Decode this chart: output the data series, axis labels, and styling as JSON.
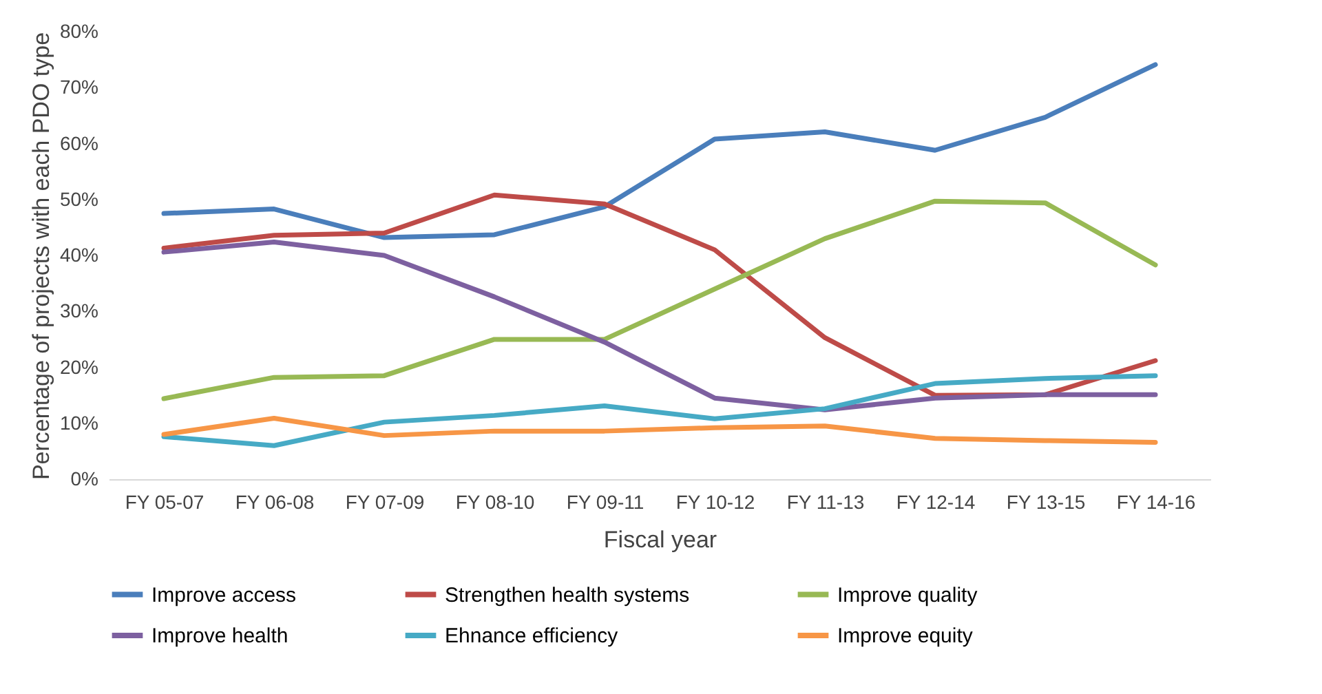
{
  "chart_data": {
    "type": "line",
    "xlabel": "Fiscal year",
    "ylabel": "Percentage of projects with each PDO type",
    "categories": [
      "FY 05-07",
      "FY 06-08",
      "FY 07-09",
      "FY 08-10",
      "FY 09-11",
      "FY 10-12",
      "FY 11-13",
      "FY 12-14",
      "FY 13-15",
      "FY 14-16"
    ],
    "ylim": [
      0,
      80
    ],
    "yticks": [
      {
        "value": 0,
        "label": "0%"
      },
      {
        "value": 10,
        "label": "10%"
      },
      {
        "value": 20,
        "label": "20%"
      },
      {
        "value": 30,
        "label": "30%"
      },
      {
        "value": 40,
        "label": "40%"
      },
      {
        "value": 50,
        "label": "50%"
      },
      {
        "value": 60,
        "label": "60%"
      },
      {
        "value": 70,
        "label": "70%"
      },
      {
        "value": 80,
        "label": "80%"
      }
    ],
    "grid": false,
    "legend": "bottom",
    "marker": "none",
    "line_style": "solid",
    "series": [
      {
        "name": "Improve access",
        "color": "#4a7ebb",
        "values": [
          47.5,
          48.3,
          43.2,
          43.7,
          48.7,
          60.8,
          62.1,
          58.8,
          64.7,
          74.1
        ]
      },
      {
        "name": "Strengthen health systems",
        "color": "#be4b48",
        "values": [
          41.3,
          43.6,
          44,
          50.8,
          49.2,
          41,
          25.3,
          15,
          15.1,
          21.2
        ]
      },
      {
        "name": "Improve quality",
        "color": "#98b954",
        "values": [
          14.4,
          18.2,
          18.5,
          25,
          25,
          34,
          43,
          49.7,
          49.4,
          38.3
        ]
      },
      {
        "name": "Improve health",
        "color": "#7d60a0",
        "values": [
          40.6,
          42.4,
          40,
          32.6,
          24.5,
          14.5,
          12.4,
          14.5,
          15.1,
          15.1
        ]
      },
      {
        "name": "Ehnance efficiency",
        "color": "#46aac5",
        "values": [
          7.6,
          6,
          10.2,
          11.4,
          13.1,
          10.8,
          12.6,
          17.1,
          18,
          18.5
        ]
      },
      {
        "name": "Improve equity",
        "color": "#f79646",
        "values": [
          8,
          10.9,
          7.8,
          8.6,
          8.6,
          9.2,
          9.5,
          7.3,
          6.9,
          6.6
        ]
      }
    ]
  }
}
